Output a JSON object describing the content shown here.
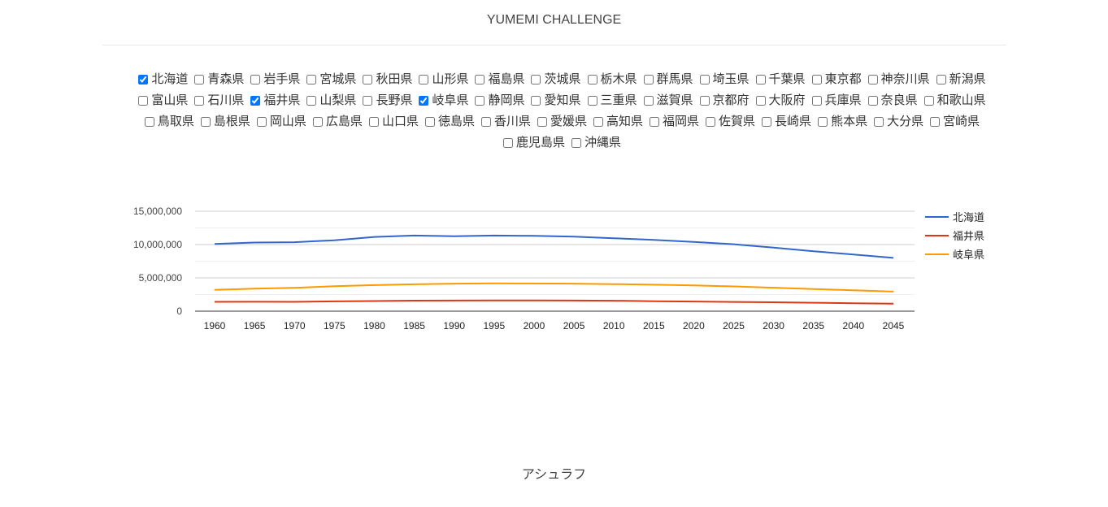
{
  "header": {
    "title": "YUMEMI CHALLENGE"
  },
  "prefectures": [
    {
      "name": "北海道",
      "checked": true
    },
    {
      "name": "青森県",
      "checked": false
    },
    {
      "name": "岩手県",
      "checked": false
    },
    {
      "name": "宮城県",
      "checked": false
    },
    {
      "name": "秋田県",
      "checked": false
    },
    {
      "name": "山形県",
      "checked": false
    },
    {
      "name": "福島県",
      "checked": false
    },
    {
      "name": "茨城県",
      "checked": false
    },
    {
      "name": "栃木県",
      "checked": false
    },
    {
      "name": "群馬県",
      "checked": false
    },
    {
      "name": "埼玉県",
      "checked": false
    },
    {
      "name": "千葉県",
      "checked": false
    },
    {
      "name": "東京都",
      "checked": false
    },
    {
      "name": "神奈川県",
      "checked": false
    },
    {
      "name": "新潟県",
      "checked": false
    },
    {
      "name": "富山県",
      "checked": false
    },
    {
      "name": "石川県",
      "checked": false
    },
    {
      "name": "福井県",
      "checked": true
    },
    {
      "name": "山梨県",
      "checked": false
    },
    {
      "name": "長野県",
      "checked": false
    },
    {
      "name": "岐阜県",
      "checked": true
    },
    {
      "name": "静岡県",
      "checked": false
    },
    {
      "name": "愛知県",
      "checked": false
    },
    {
      "name": "三重県",
      "checked": false
    },
    {
      "name": "滋賀県",
      "checked": false
    },
    {
      "name": "京都府",
      "checked": false
    },
    {
      "name": "大阪府",
      "checked": false
    },
    {
      "name": "兵庫県",
      "checked": false
    },
    {
      "name": "奈良県",
      "checked": false
    },
    {
      "name": "和歌山県",
      "checked": false
    },
    {
      "name": "鳥取県",
      "checked": false
    },
    {
      "name": "島根県",
      "checked": false
    },
    {
      "name": "岡山県",
      "checked": false
    },
    {
      "name": "広島県",
      "checked": false
    },
    {
      "name": "山口県",
      "checked": false
    },
    {
      "name": "徳島県",
      "checked": false
    },
    {
      "name": "香川県",
      "checked": false
    },
    {
      "name": "愛媛県",
      "checked": false
    },
    {
      "name": "高知県",
      "checked": false
    },
    {
      "name": "福岡県",
      "checked": false
    },
    {
      "name": "佐賀県",
      "checked": false
    },
    {
      "name": "長崎県",
      "checked": false
    },
    {
      "name": "熊本県",
      "checked": false
    },
    {
      "name": "大分県",
      "checked": false
    },
    {
      "name": "宮崎県",
      "checked": false
    },
    {
      "name": "鹿児島県",
      "checked": false
    },
    {
      "name": "沖縄県",
      "checked": false
    }
  ],
  "chart_data": {
    "type": "line",
    "title": "",
    "xlabel": "",
    "ylabel": "",
    "x": [
      "1960",
      "1965",
      "1970",
      "1975",
      "1980",
      "1985",
      "1990",
      "1995",
      "2000",
      "2005",
      "2010",
      "2015",
      "2020",
      "2025",
      "2030",
      "2035",
      "2040",
      "2045"
    ],
    "ylim": [
      0,
      15000000
    ],
    "yticks": [
      "0",
      "5,000,000",
      "10,000,000",
      "15,000,000"
    ],
    "grid": true,
    "legend_position": "right",
    "series": [
      {
        "name": "北海道",
        "color": "#3366cc",
        "values": [
          10100000,
          10300000,
          10350000,
          10650000,
          11150000,
          11350000,
          11250000,
          11350000,
          11300000,
          11200000,
          10950000,
          10700000,
          10400000,
          10050000,
          9550000,
          9000000,
          8500000,
          8000000
        ]
      },
      {
        "name": "福井県",
        "color": "#dc3912",
        "values": [
          1400000,
          1420000,
          1400000,
          1470000,
          1530000,
          1580000,
          1600000,
          1620000,
          1610000,
          1600000,
          1570000,
          1500000,
          1450000,
          1390000,
          1340000,
          1270000,
          1200000,
          1120000
        ]
      },
      {
        "name": "岐阜県",
        "color": "#ff9900",
        "values": [
          3200000,
          3380000,
          3500000,
          3750000,
          3920000,
          4040000,
          4130000,
          4170000,
          4160000,
          4130000,
          4060000,
          3980000,
          3870000,
          3720000,
          3520000,
          3330000,
          3130000,
          2940000
        ]
      }
    ]
  },
  "footer": {
    "text": "アシュラフ"
  }
}
